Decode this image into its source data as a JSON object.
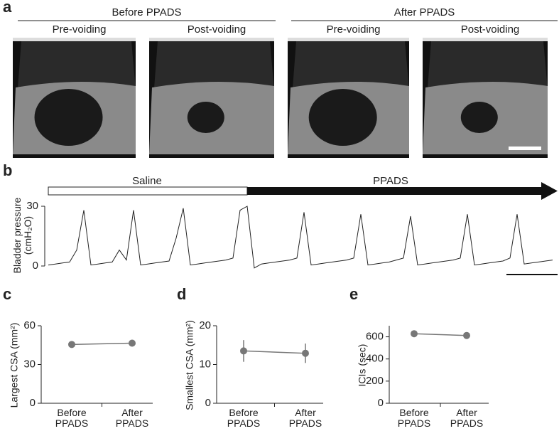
{
  "ultrasound": {
    "panel_label": "a",
    "groups": [
      {
        "title": "Before PPADS",
        "conditions": [
          "Pre-voiding",
          "Post-voiding"
        ]
      },
      {
        "title": "After PPADS",
        "conditions": [
          "Pre-voiding",
          "Post-voiding"
        ]
      }
    ]
  },
  "chart_data": [
    {
      "type": "line",
      "panel_label": "b",
      "y_label": "Bladder pressure (cmH₂O)",
      "phases": [
        "Saline",
        "PPADS"
      ],
      "color": "#222",
      "ylim": [
        0,
        30
      ],
      "yticks": [
        0,
        30
      ],
      "values": [
        0.5,
        1,
        1.5,
        2,
        8,
        28,
        0.5,
        1,
        1.5,
        2,
        8,
        3,
        28,
        0.5,
        1,
        1.5,
        2,
        2.5,
        14,
        29,
        0.5,
        1,
        1.5,
        2,
        2.5,
        3,
        4,
        28,
        30,
        -1,
        1,
        1.5,
        2,
        2.5,
        3,
        4,
        27,
        0.5,
        1,
        1.5,
        2,
        2.5,
        3,
        4,
        26,
        0.5,
        1,
        1.5,
        2,
        3,
        4,
        25,
        0.5,
        1,
        1.5,
        2,
        2.5,
        3,
        4,
        26,
        0.5,
        1,
        1.5,
        2,
        2.5,
        4,
        26,
        1,
        1.5,
        2,
        2.5,
        3
      ]
    },
    {
      "type": "dot",
      "panel_label": "c",
      "y_label": "Largest CSA (mm²)",
      "categories": [
        "Before PPADS",
        "After PPADS"
      ],
      "values": [
        45.5,
        46.5
      ],
      "color": "#777",
      "ylim": [
        0,
        60
      ],
      "yticks": [
        0,
        30,
        60
      ]
    },
    {
      "type": "dot",
      "panel_label": "d",
      "y_label": "Smallest CSA (mm²)",
      "categories": [
        "Before PPADS",
        "After PPADS"
      ],
      "values": [
        13.5,
        12.9
      ],
      "errors": [
        2.8,
        2.5
      ],
      "color": "#777",
      "ylim": [
        0,
        20
      ],
      "yticks": [
        0,
        10,
        20
      ]
    },
    {
      "type": "dot",
      "panel_label": "e",
      "y_label": "ICIs (sec)",
      "categories": [
        "Before PPADS",
        "After PPADS"
      ],
      "values": [
        628,
        612
      ],
      "color": "#777",
      "ylim": [
        0,
        700
      ],
      "yticks": [
        0,
        200,
        400,
        600
      ]
    }
  ]
}
